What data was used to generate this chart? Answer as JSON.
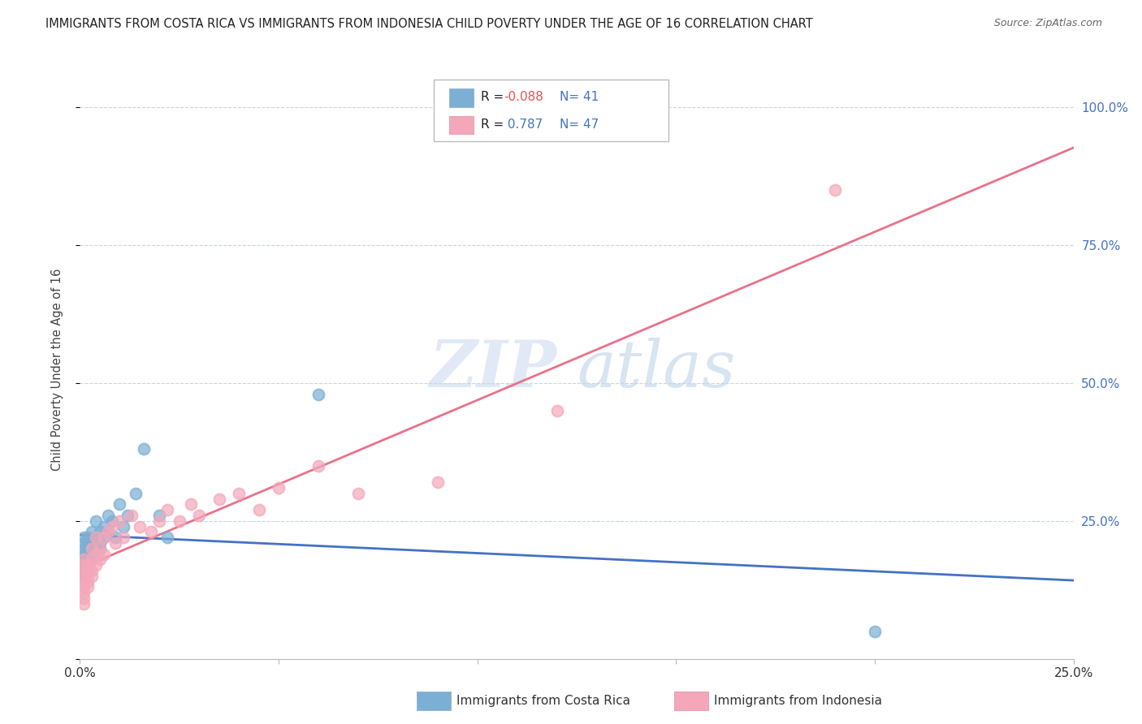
{
  "title": "IMMIGRANTS FROM COSTA RICA VS IMMIGRANTS FROM INDONESIA CHILD POVERTY UNDER THE AGE OF 16 CORRELATION CHART",
  "source": "Source: ZipAtlas.com",
  "ylabel": "Child Poverty Under the Age of 16",
  "xlim": [
    0.0,
    0.25
  ],
  "ylim": [
    0.0,
    1.05
  ],
  "costa_rica_color": "#7bafd4",
  "indonesia_color": "#f4a7b9",
  "costa_rica_line_color": "#4472c4",
  "indonesia_line_color": "#e8728a",
  "background_color": "#ffffff",
  "grid_color": "#c8d4e8",
  "watermark_zip": "ZIP",
  "watermark_atlas": "atlas",
  "costa_rica_x": [
    0.001,
    0.001,
    0.001,
    0.001,
    0.001,
    0.001,
    0.001,
    0.001,
    0.002,
    0.002,
    0.002,
    0.002,
    0.002,
    0.002,
    0.003,
    0.003,
    0.003,
    0.003,
    0.003,
    0.004,
    0.004,
    0.004,
    0.004,
    0.005,
    0.005,
    0.005,
    0.006,
    0.006,
    0.007,
    0.007,
    0.008,
    0.009,
    0.01,
    0.011,
    0.012,
    0.014,
    0.016,
    0.02,
    0.022,
    0.06,
    0.2
  ],
  "costa_rica_y": [
    0.18,
    0.2,
    0.21,
    0.19,
    0.22,
    0.17,
    0.16,
    0.15,
    0.2,
    0.18,
    0.22,
    0.21,
    0.19,
    0.17,
    0.23,
    0.2,
    0.19,
    0.21,
    0.18,
    0.22,
    0.25,
    0.19,
    0.2,
    0.23,
    0.21,
    0.2,
    0.24,
    0.22,
    0.26,
    0.23,
    0.25,
    0.22,
    0.28,
    0.24,
    0.26,
    0.3,
    0.38,
    0.26,
    0.22,
    0.48,
    0.05
  ],
  "indonesia_x": [
    0.001,
    0.001,
    0.001,
    0.001,
    0.001,
    0.001,
    0.001,
    0.001,
    0.001,
    0.002,
    0.002,
    0.002,
    0.002,
    0.002,
    0.003,
    0.003,
    0.003,
    0.003,
    0.004,
    0.004,
    0.004,
    0.005,
    0.005,
    0.006,
    0.006,
    0.007,
    0.008,
    0.009,
    0.01,
    0.011,
    0.013,
    0.015,
    0.018,
    0.02,
    0.022,
    0.025,
    0.028,
    0.03,
    0.035,
    0.04,
    0.045,
    0.05,
    0.06,
    0.07,
    0.09,
    0.12,
    0.19
  ],
  "indonesia_y": [
    0.15,
    0.14,
    0.16,
    0.13,
    0.17,
    0.12,
    0.18,
    0.11,
    0.1,
    0.16,
    0.15,
    0.17,
    0.14,
    0.13,
    0.18,
    0.16,
    0.2,
    0.15,
    0.19,
    0.17,
    0.22,
    0.2,
    0.18,
    0.22,
    0.19,
    0.23,
    0.24,
    0.21,
    0.25,
    0.22,
    0.26,
    0.24,
    0.23,
    0.25,
    0.27,
    0.25,
    0.28,
    0.26,
    0.29,
    0.3,
    0.27,
    0.31,
    0.35,
    0.3,
    0.32,
    0.45,
    0.85
  ]
}
